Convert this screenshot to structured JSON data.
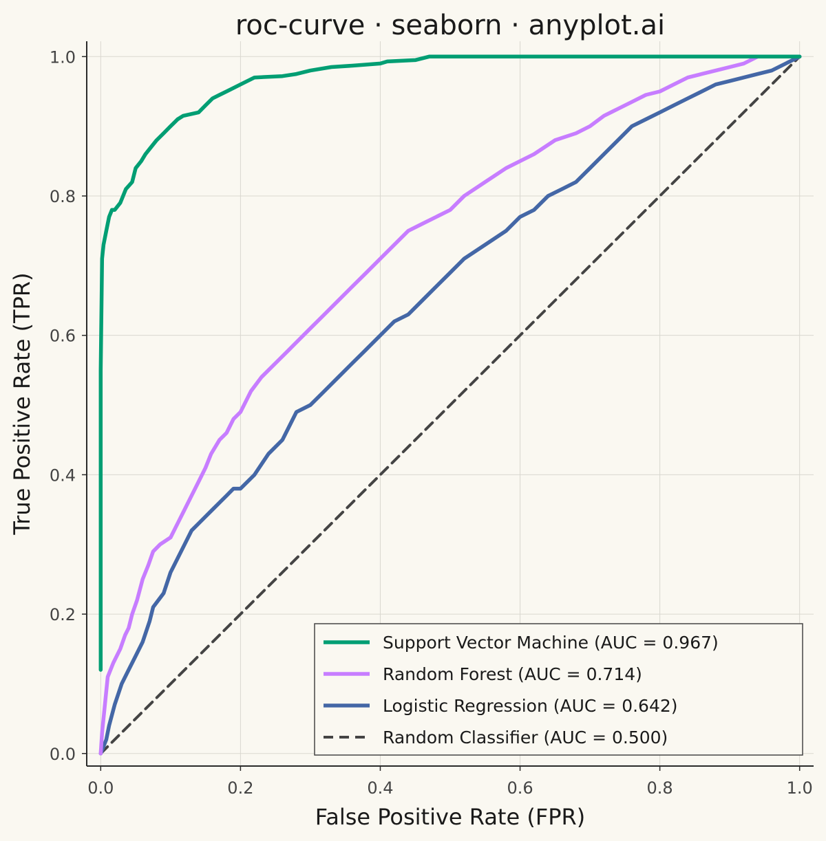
{
  "chart_data": {
    "type": "line",
    "title": "roc-curve · seaborn · anyplot.ai",
    "xlabel": "False Positive Rate (FPR)",
    "ylabel": "True Positive Rate (TPR)",
    "xlim": [
      -0.02,
      1.02
    ],
    "ylim": [
      -0.018,
      1.022
    ],
    "x_ticks": [
      "0.0",
      "0.2",
      "0.4",
      "0.6",
      "0.8",
      "1.0"
    ],
    "y_ticks": [
      "0.0",
      "0.2",
      "0.4",
      "0.6",
      "0.8",
      "1.0"
    ],
    "grid": true,
    "legend_position": "bottom-right",
    "series": [
      {
        "name": "Support Vector Machine (AUC = 0.967)",
        "color": "#009E73",
        "style": "solid",
        "x": [
          0.0,
          0.0,
          0.002,
          0.004,
          0.006,
          0.008,
          0.012,
          0.016,
          0.02,
          0.028,
          0.032,
          0.036,
          0.045,
          0.05,
          0.058,
          0.064,
          0.072,
          0.08,
          0.09,
          0.1,
          0.11,
          0.118,
          0.14,
          0.15,
          0.16,
          0.17,
          0.18,
          0.2,
          0.22,
          0.26,
          0.28,
          0.3,
          0.33,
          0.36,
          0.4,
          0.41,
          0.45,
          0.47,
          0.6,
          0.7,
          0.72,
          0.94,
          1.0
        ],
        "y": [
          0.12,
          0.55,
          0.71,
          0.73,
          0.74,
          0.75,
          0.77,
          0.78,
          0.78,
          0.79,
          0.8,
          0.81,
          0.82,
          0.84,
          0.85,
          0.86,
          0.87,
          0.88,
          0.89,
          0.9,
          0.91,
          0.915,
          0.92,
          0.93,
          0.94,
          0.945,
          0.95,
          0.96,
          0.97,
          0.972,
          0.975,
          0.98,
          0.985,
          0.987,
          0.99,
          0.993,
          0.995,
          1.0,
          1.0,
          1.0,
          1.0,
          1.0,
          1.0
        ]
      },
      {
        "name": "Random Forest (AUC = 0.714)",
        "color": "#C77DFF",
        "style": "solid",
        "x": [
          0.0,
          0.002,
          0.006,
          0.01,
          0.018,
          0.028,
          0.035,
          0.04,
          0.045,
          0.052,
          0.06,
          0.068,
          0.075,
          0.085,
          0.1,
          0.11,
          0.12,
          0.13,
          0.14,
          0.15,
          0.158,
          0.17,
          0.18,
          0.19,
          0.2,
          0.215,
          0.23,
          0.25,
          0.27,
          0.28,
          0.3,
          0.32,
          0.34,
          0.36,
          0.38,
          0.4,
          0.42,
          0.44,
          0.46,
          0.48,
          0.5,
          0.52,
          0.55,
          0.58,
          0.6,
          0.62,
          0.65,
          0.68,
          0.7,
          0.72,
          0.74,
          0.76,
          0.78,
          0.8,
          0.82,
          0.84,
          0.86,
          0.88,
          0.9,
          0.92,
          0.94,
          1.0
        ],
        "y": [
          0.0,
          0.03,
          0.07,
          0.11,
          0.13,
          0.15,
          0.17,
          0.18,
          0.2,
          0.22,
          0.25,
          0.27,
          0.29,
          0.3,
          0.31,
          0.33,
          0.35,
          0.37,
          0.39,
          0.41,
          0.43,
          0.45,
          0.46,
          0.48,
          0.49,
          0.52,
          0.54,
          0.56,
          0.58,
          0.59,
          0.61,
          0.63,
          0.65,
          0.67,
          0.69,
          0.71,
          0.73,
          0.75,
          0.76,
          0.77,
          0.78,
          0.8,
          0.82,
          0.84,
          0.85,
          0.86,
          0.88,
          0.89,
          0.9,
          0.915,
          0.925,
          0.935,
          0.945,
          0.95,
          0.96,
          0.97,
          0.975,
          0.98,
          0.985,
          0.99,
          1.0,
          1.0
        ]
      },
      {
        "name": "Logistic Regression (AUC = 0.642)",
        "color": "#4467A6",
        "style": "solid",
        "x": [
          0.0,
          0.008,
          0.012,
          0.02,
          0.03,
          0.04,
          0.05,
          0.06,
          0.07,
          0.075,
          0.09,
          0.1,
          0.11,
          0.12,
          0.13,
          0.14,
          0.15,
          0.16,
          0.17,
          0.18,
          0.19,
          0.2,
          0.22,
          0.24,
          0.26,
          0.27,
          0.28,
          0.3,
          0.32,
          0.34,
          0.36,
          0.38,
          0.4,
          0.42,
          0.44,
          0.46,
          0.48,
          0.5,
          0.52,
          0.55,
          0.58,
          0.6,
          0.62,
          0.64,
          0.66,
          0.68,
          0.7,
          0.72,
          0.74,
          0.76,
          0.78,
          0.8,
          0.82,
          0.84,
          0.86,
          0.88,
          0.9,
          0.92,
          0.94,
          0.96,
          0.98,
          1.0
        ],
        "y": [
          0.0,
          0.02,
          0.04,
          0.07,
          0.1,
          0.12,
          0.14,
          0.16,
          0.19,
          0.21,
          0.23,
          0.26,
          0.28,
          0.3,
          0.32,
          0.33,
          0.34,
          0.35,
          0.36,
          0.37,
          0.38,
          0.38,
          0.4,
          0.43,
          0.45,
          0.47,
          0.49,
          0.5,
          0.52,
          0.54,
          0.56,
          0.58,
          0.6,
          0.62,
          0.63,
          0.65,
          0.67,
          0.69,
          0.71,
          0.73,
          0.75,
          0.77,
          0.78,
          0.8,
          0.81,
          0.82,
          0.84,
          0.86,
          0.88,
          0.9,
          0.91,
          0.92,
          0.93,
          0.94,
          0.95,
          0.96,
          0.965,
          0.97,
          0.975,
          0.98,
          0.99,
          1.0
        ]
      },
      {
        "name": "Random Classifier (AUC = 0.500)",
        "color": "#444444",
        "style": "dashed",
        "x": [
          0.0,
          1.0
        ],
        "y": [
          0.0,
          1.0
        ]
      }
    ]
  }
}
